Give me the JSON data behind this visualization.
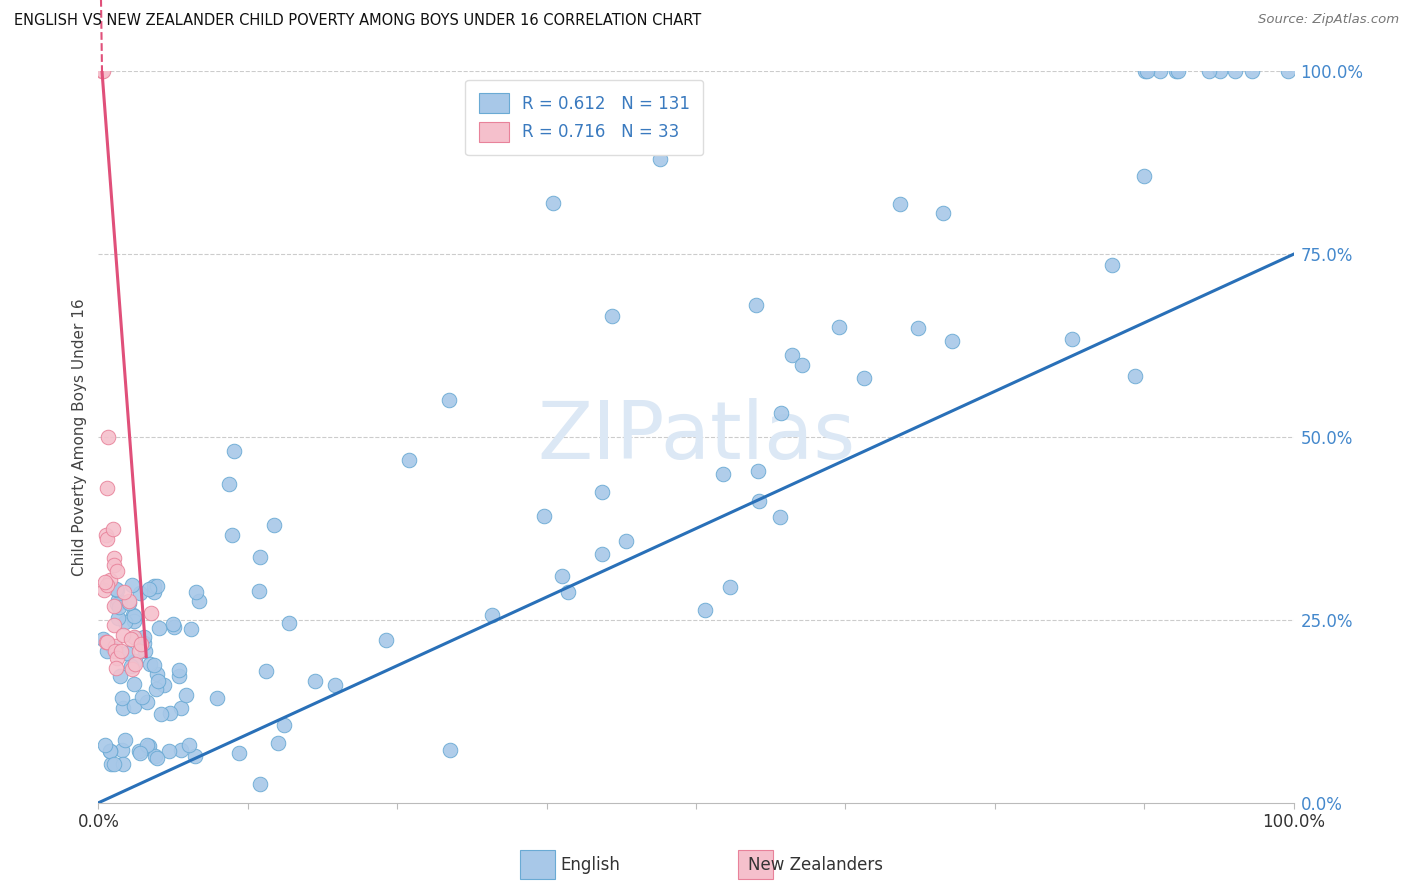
{
  "title": "ENGLISH VS NEW ZEALANDER CHILD POVERTY AMONG BOYS UNDER 16 CORRELATION CHART",
  "source": "Source: ZipAtlas.com",
  "ylabel": "Child Poverty Among Boys Under 16",
  "ytick_labels": [
    "0.0%",
    "25.0%",
    "50.0%",
    "75.0%",
    "100.0%"
  ],
  "ytick_values": [
    0.0,
    0.25,
    0.5,
    0.75,
    1.0
  ],
  "legend_label_english": "English",
  "legend_label_nz": "New Zealanders",
  "english_color": "#a8c8e8",
  "english_edge_color": "#6aaad4",
  "nz_color": "#f5c0cc",
  "nz_edge_color": "#e8829a",
  "trendline_english_color": "#2970b8",
  "trendline_nz_color": "#e0507a",
  "watermark_color": "#dce8f5",
  "R_english": 0.612,
  "N_english": 131,
  "R_nz": 0.716,
  "N_nz": 33,
  "trendline_english": [
    [
      0.0,
      0.0
    ],
    [
      1.0,
      0.75
    ]
  ],
  "trendline_nz": [
    [
      0.003,
      1.0
    ],
    [
      0.04,
      0.2
    ]
  ],
  "xlim": [
    0.0,
    1.0
  ],
  "ylim": [
    0.0,
    1.0
  ],
  "figsize": [
    14.06,
    8.92
  ],
  "dpi": 100
}
